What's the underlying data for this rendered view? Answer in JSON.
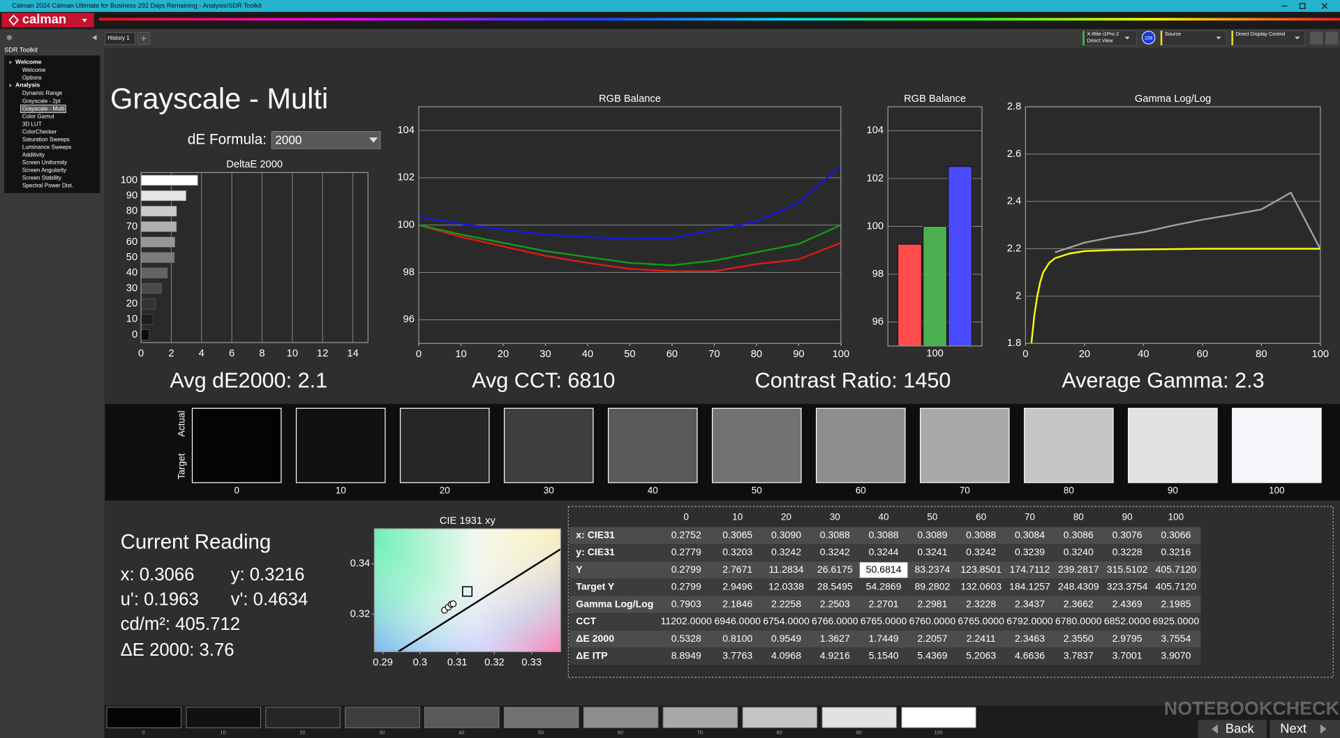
{
  "window": {
    "title": "Calman 2024 Calman Ultimate for Business 292 Days Remaining - Analysis/SDR Toolkit",
    "logo": "calman"
  },
  "sidebar": {
    "title": "SDR Toolkit",
    "groups": [
      {
        "name": "Welcome",
        "items": [
          "Welcome",
          "Options"
        ]
      },
      {
        "name": "Analysis",
        "items": [
          "Dynamic Range",
          "Grayscale - 2pt",
          "Grayscale - Multi",
          "Color Gamut",
          "3D LUT",
          "ColorChecker",
          "Saturation Sweeps",
          "Luminance Sweeps",
          "Additivity",
          "Screen Uniformity",
          "Screen Angularity",
          "Screen Stability",
          "Spectral Power Dist."
        ]
      }
    ],
    "selected": [
      1,
      2
    ]
  },
  "tabs": [
    "History 1"
  ],
  "toolbar": {
    "meter": [
      "X-Rite i1Pro 2",
      "Direct View"
    ],
    "badge": 238,
    "source": "Source",
    "display": "Direct Display Control"
  },
  "page": {
    "title": "Grayscale - Multi",
    "formula_label": "dE Formula:",
    "formula": "2000"
  },
  "chart_data": [
    {
      "type": "bar",
      "horizontal": true,
      "title": "DeltaE 2000",
      "categories": [
        0,
        10,
        20,
        30,
        40,
        50,
        60,
        70,
        80,
        90,
        100
      ],
      "values": [
        0.5328,
        0.81,
        0.9549,
        1.3627,
        1.7449,
        2.2057,
        2.2411,
        2.3463,
        2.355,
        2.9795,
        3.7554
      ],
      "colors": [
        "#0a0a0a",
        "#1e1e1e",
        "#333333",
        "#4a4a4a",
        "#636363",
        "#7c7c7c",
        "#969696",
        "#b0b0b0",
        "#cbcbcb",
        "#e5e5e5",
        "#ffffff"
      ],
      "xlim": [
        0,
        15
      ],
      "xticks": [
        0,
        2,
        4,
        6,
        8,
        10,
        12,
        14
      ],
      "grid": "x"
    },
    {
      "type": "line",
      "title": "RGB Balance",
      "x": [
        0,
        10,
        20,
        30,
        40,
        50,
        60,
        70,
        80,
        90,
        100
      ],
      "series": [
        {
          "color": "#e01818",
          "values": [
            100,
            99.5,
            99.1,
            98.7,
            98.4,
            98.15,
            98.05,
            98.05,
            98.35,
            98.55,
            99.25
          ]
        },
        {
          "color": "#129a12",
          "values": [
            100,
            99.6,
            99.25,
            98.9,
            98.65,
            98.4,
            98.3,
            98.5,
            98.85,
            99.2,
            100
          ]
        },
        {
          "color": "#1818e0",
          "values": [
            100.35,
            100.05,
            99.8,
            99.6,
            99.5,
            99.4,
            99.45,
            99.8,
            100.15,
            100.95,
            102.5
          ]
        }
      ],
      "xlim": [
        0,
        100
      ],
      "xticks": [
        0,
        10,
        20,
        30,
        40,
        50,
        60,
        70,
        80,
        90,
        100
      ],
      "ylim": [
        95,
        105
      ],
      "yticks": [
        96,
        98,
        100,
        102,
        104
      ],
      "grid": "y"
    },
    {
      "type": "bar",
      "title": "RGB Balance",
      "categories": [
        100
      ],
      "series": [
        {
          "color": "#ff4d4d",
          "values": [
            99.25
          ]
        },
        {
          "color": "#4caf50",
          "values": [
            100
          ]
        },
        {
          "color": "#4a4aff",
          "values": [
            102.5
          ]
        }
      ],
      "ylim": [
        95,
        105
      ],
      "yticks": [
        96,
        98,
        100,
        102,
        104
      ],
      "grid": "y"
    },
    {
      "type": "line",
      "title": "Gamma Log/Log",
      "series": [
        {
          "color": "#a0a0a0",
          "x": [
            10,
            20,
            30,
            40,
            50,
            60,
            70,
            80,
            90,
            100
          ],
          "values": [
            2.1846,
            2.2258,
            2.2503,
            2.2701,
            2.2981,
            2.3228,
            2.3437,
            2.3662,
            2.4369,
            2.1985
          ]
        },
        {
          "color": "#ffff00",
          "x": [
            2,
            3,
            4,
            5,
            6,
            8,
            10,
            15,
            20,
            30,
            40,
            60,
            80,
            100
          ],
          "values": [
            1.8,
            1.92,
            2.0,
            2.06,
            2.1,
            2.14,
            2.16,
            2.18,
            2.19,
            2.195,
            2.197,
            2.2,
            2.2,
            2.2
          ]
        }
      ],
      "xlim": [
        0,
        100
      ],
      "xticks": [
        0,
        20,
        40,
        60,
        80,
        100
      ],
      "ylim": [
        1.8,
        2.8
      ],
      "yticks": [
        1.8,
        2,
        2.2,
        2.4,
        2.6,
        2.8
      ],
      "grid": "y"
    },
    {
      "type": "scatter",
      "title": "CIE 1931 xy",
      "x": [
        0.3066,
        0.3076,
        0.3084,
        0.3089
      ],
      "values": [
        0.3216,
        0.3228,
        0.3239,
        0.3241
      ],
      "target": {
        "x": 0.3127,
        "y": 0.329
      },
      "locus": {
        "x": [
          0.2941,
          0.3378
        ],
        "y": [
          0.3051,
          0.3458
        ]
      },
      "xlim": [
        0.2877,
        0.3378
      ],
      "xticks": [
        0.29,
        0.3,
        0.31,
        0.32,
        0.33
      ],
      "ylim": [
        0.3051,
        0.3539
      ],
      "yticks": [
        0.32,
        0.34
      ],
      "grid": false
    }
  ],
  "summary": [
    "Avg dE2000: 2.1",
    "Avg CCT: 6810",
    "Contrast Ratio: 1450",
    "Average Gamma: 2.3"
  ],
  "swatches": {
    "labels": [
      "Actual",
      "Target"
    ],
    "categories": [
      0,
      10,
      20,
      30,
      40,
      50,
      60,
      70,
      80,
      90,
      100
    ],
    "colors": [
      "#040404",
      "#101112",
      "#262626",
      "#3e3e3f",
      "#59595a",
      "#727273",
      "#8e8e8f",
      "#a9a9aa",
      "#c5c5c6",
      "#e2e2e4",
      "#f4f6fa"
    ]
  },
  "current_reading": {
    "title": "Current Reading",
    "items": [
      "x: 0.3066",
      "y: 0.3216",
      "u': 0.1963",
      "v': 0.4634",
      "cd/m²: 405.712",
      "ΔE 2000: 3.76"
    ]
  },
  "table": {
    "columns": [
      0,
      10,
      20,
      30,
      40,
      50,
      60,
      70,
      80,
      90,
      100
    ],
    "rows": [
      [
        "x: CIE31",
        "0.2752",
        "0.3065",
        "0.3090",
        "0.3088",
        "0.3088",
        "0.3089",
        "0.3088",
        "0.3084",
        "0.3086",
        "0.3076",
        "0.3066"
      ],
      [
        "y: CIE31",
        "0.2779",
        "0.3203",
        "0.3242",
        "0.3242",
        "0.3244",
        "0.3241",
        "0.3242",
        "0.3239",
        "0.3240",
        "0.3228",
        "0.3216"
      ],
      [
        "Y",
        "0.2799",
        "2.7671",
        "11.2834",
        "26.6175",
        "50.6814",
        "83.2374",
        "123.8501",
        "174.7112",
        "239.2817",
        "315.5102",
        "405.7120"
      ],
      [
        "Target Y",
        "0.2799",
        "2.9496",
        "12.0338",
        "28.5495",
        "54.2869",
        "89.2802",
        "132.0603",
        "184.1257",
        "248.4309",
        "323.3754",
        "405.7120"
      ],
      [
        "Gamma Log/Log",
        "0.7903",
        "2.1846",
        "2.2258",
        "2.2503",
        "2.2701",
        "2.2981",
        "2.3228",
        "2.3437",
        "2.3662",
        "2.4369",
        "2.1985"
      ],
      [
        "CCT",
        "11202.0000",
        "6946.0000",
        "6754.0000",
        "6766.0000",
        "6765.0000",
        "6760.0000",
        "6765.0000",
        "6792.0000",
        "6780.0000",
        "6852.0000",
        "6925.0000"
      ],
      [
        "ΔE 2000",
        "0.5328",
        "0.8100",
        "0.9549",
        "1.3627",
        "1.7449",
        "2.2057",
        "2.2411",
        "2.3463",
        "2.3550",
        "2.9795",
        "3.7554"
      ],
      [
        "ΔE ITP",
        "8.8949",
        "3.7763",
        "4.0968",
        "4.9216",
        "5.1540",
        "5.4369",
        "5.2063",
        "4.6636",
        "3.7837",
        "3.7001",
        "3.9070"
      ]
    ],
    "highlight": [
      2,
      5
    ]
  },
  "bottom": {
    "buttons": [
      "Back",
      "Next"
    ]
  },
  "watermark": "NOTEBOOKCHECK"
}
